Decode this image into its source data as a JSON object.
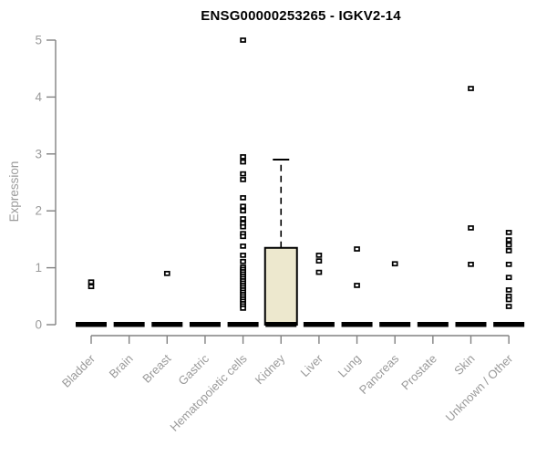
{
  "chart_data": {
    "type": "boxplot",
    "title": "ENSG00000253265 - IGKV2-14",
    "xlabel": "",
    "ylabel": "Expression",
    "ylim": [
      0,
      5
    ],
    "yticks": [
      0,
      1,
      2,
      3,
      4,
      5
    ],
    "grid": false,
    "legend": "none",
    "categories": [
      "Bladder",
      "Brain",
      "Breast",
      "Gastric",
      "Hematopoietic cells",
      "Kidney",
      "Liver",
      "Lung",
      "Pancreas",
      "Prostate",
      "Skin",
      "Unknown / Other"
    ],
    "boxes": [
      {
        "category": "Bladder",
        "median": 0,
        "q1": 0,
        "q3": 0,
        "whisker_low": 0,
        "whisker_high": 0,
        "outliers": [
          0.75,
          0.67
        ]
      },
      {
        "category": "Brain",
        "median": 0,
        "q1": 0,
        "q3": 0,
        "whisker_low": 0,
        "whisker_high": 0,
        "outliers": []
      },
      {
        "category": "Breast",
        "median": 0,
        "q1": 0,
        "q3": 0,
        "whisker_low": 0,
        "whisker_high": 0,
        "outliers": [
          0.9
        ]
      },
      {
        "category": "Gastric",
        "median": 0,
        "q1": 0,
        "q3": 0,
        "whisker_low": 0,
        "whisker_high": 0,
        "outliers": []
      },
      {
        "category": "Hematopoietic cells",
        "median": 0,
        "q1": 0,
        "q3": 0,
        "whisker_low": 0,
        "whisker_high": 0,
        "outliers": [
          5.0,
          2.95,
          2.86,
          2.65,
          2.55,
          2.23,
          2.08,
          2.0,
          1.86,
          1.78,
          1.72,
          1.6,
          1.55,
          1.38,
          1.22,
          1.11,
          1.01,
          0.97,
          0.93,
          0.89,
          0.85,
          0.81,
          0.77,
          0.73,
          0.69,
          0.65,
          0.61,
          0.57,
          0.53,
          0.49,
          0.45,
          0.41,
          0.37,
          0.33,
          0.29
        ]
      },
      {
        "category": "Kidney",
        "median": 0,
        "q1": 0,
        "q3": 1.35,
        "whisker_low": 0,
        "whisker_high": 2.9,
        "outliers": []
      },
      {
        "category": "Liver",
        "median": 0,
        "q1": 0,
        "q3": 0,
        "whisker_low": 0,
        "whisker_high": 0,
        "outliers": [
          1.22,
          1.12,
          0.92
        ]
      },
      {
        "category": "Lung",
        "median": 0,
        "q1": 0,
        "q3": 0,
        "whisker_low": 0,
        "whisker_high": 0,
        "outliers": [
          1.33,
          0.69
        ]
      },
      {
        "category": "Pancreas",
        "median": 0,
        "q1": 0,
        "q3": 0,
        "whisker_low": 0,
        "whisker_high": 0,
        "outliers": [
          1.07
        ]
      },
      {
        "category": "Prostate",
        "median": 0,
        "q1": 0,
        "q3": 0,
        "whisker_low": 0,
        "whisker_high": 0,
        "outliers": []
      },
      {
        "category": "Skin",
        "median": 0,
        "q1": 0,
        "q3": 0,
        "whisker_low": 0,
        "whisker_high": 0,
        "outliers": [
          4.15,
          1.7,
          1.06
        ]
      },
      {
        "category": "Unknown / Other",
        "median": 0,
        "q1": 0,
        "q3": 0,
        "whisker_low": 0,
        "whisker_high": 0,
        "outliers": [
          1.62,
          1.49,
          1.4,
          1.3,
          1.06,
          0.83,
          0.61,
          0.5,
          0.44,
          0.32
        ]
      }
    ],
    "style": {
      "box_fill_color": "#EDE8CE",
      "box_border_color": "#000000",
      "median_color": "#000000",
      "outlier_fill_color": "#FFFFFF",
      "axis_color": "#828282",
      "label_color": "#9A9A9A",
      "title_color": "#000000"
    }
  }
}
